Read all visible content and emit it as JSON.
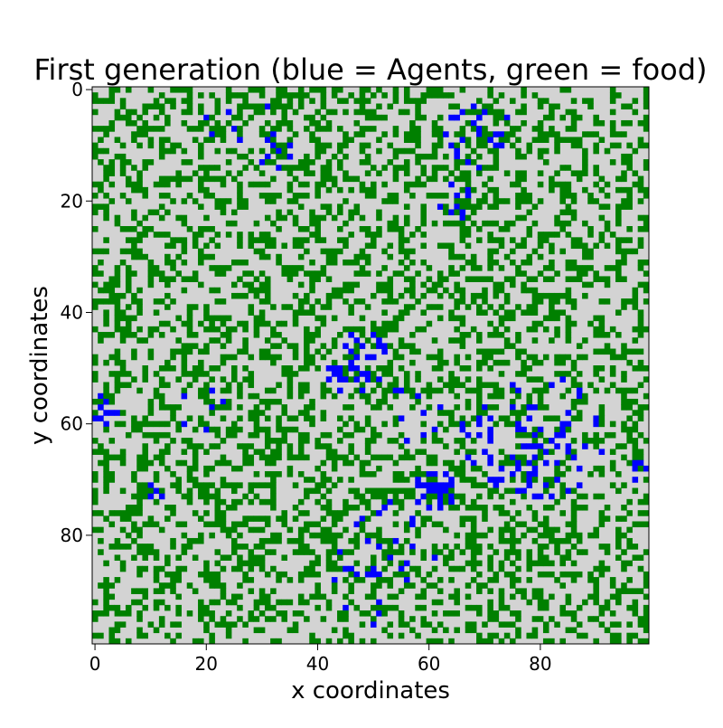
{
  "chart_data": {
    "type": "heatmap",
    "title": "First generation (blue = Agents, green = food)",
    "xlabel": "x coordinates",
    "ylabel": "y coordinates",
    "x_ticks": [
      0,
      20,
      40,
      60,
      80
    ],
    "y_ticks": [
      0,
      20,
      40,
      60,
      80
    ],
    "xlim": [
      0,
      99
    ],
    "ylim": [
      0,
      99
    ],
    "y_axis_inverted": true,
    "grid_size": [
      100,
      100
    ],
    "legend": "none",
    "colors": {
      "empty": "#d3d3d3",
      "food": "#008000",
      "agent": "#0000ff"
    },
    "note_on_cells": "Cell-level values are randomly distributed; food fraction and agent clusters estimated from the image.",
    "food_fraction": 0.36,
    "agent_clusters": [
      {
        "x": 69,
        "y": 8,
        "r": 6,
        "density": 0.22
      },
      {
        "x": 65,
        "y": 20,
        "r": 4,
        "density": 0.3
      },
      {
        "x": 27,
        "y": 10,
        "r": 9,
        "density": 0.08
      },
      {
        "x": 1,
        "y": 58,
        "r": 3,
        "density": 0.45
      },
      {
        "x": 20,
        "y": 57,
        "r": 5,
        "density": 0.12
      },
      {
        "x": 48,
        "y": 50,
        "r": 7,
        "density": 0.22
      },
      {
        "x": 58,
        "y": 58,
        "r": 6,
        "density": 0.15
      },
      {
        "x": 61,
        "y": 72,
        "r": 4,
        "density": 0.65
      },
      {
        "x": 70,
        "y": 63,
        "r": 5,
        "density": 0.3
      },
      {
        "x": 80,
        "y": 63,
        "r": 12,
        "density": 0.22
      },
      {
        "x": 53,
        "y": 83,
        "r": 9,
        "density": 0.17
      },
      {
        "x": 47,
        "y": 92,
        "r": 6,
        "density": 0.16
      },
      {
        "x": 11,
        "y": 72,
        "r": 2,
        "density": 0.4
      },
      {
        "x": 97,
        "y": 68,
        "r": 2,
        "density": 0.4
      }
    ]
  }
}
